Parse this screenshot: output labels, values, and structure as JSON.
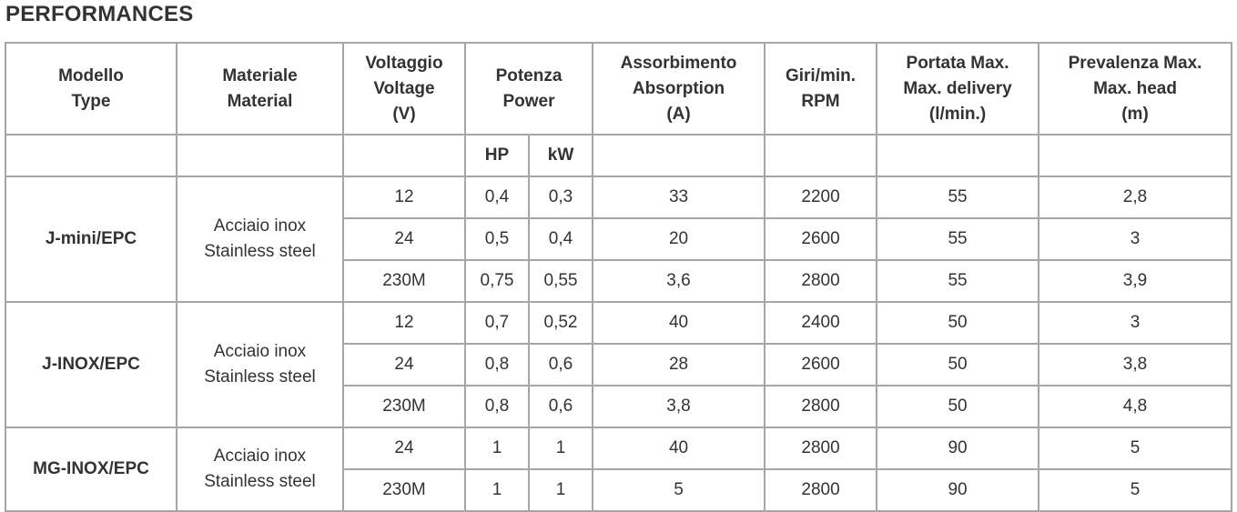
{
  "title": "PERFORMANCES",
  "headers": {
    "model": [
      "Modello",
      "Type"
    ],
    "material": [
      "Materiale",
      "Material"
    ],
    "voltage": [
      "Voltaggio",
      "Voltage",
      "(V)"
    ],
    "power": [
      "Potenza",
      "Power"
    ],
    "absorption": [
      "Assorbimento",
      "Absorption",
      "(A)"
    ],
    "rpm": [
      "Giri/min.",
      "RPM"
    ],
    "delivery": [
      "Portata Max.",
      "Max. delivery",
      "(l/min.)"
    ],
    "head": [
      "Prevalenza Max.",
      "Max. head",
      "(m)"
    ]
  },
  "power_units": {
    "hp": "HP",
    "kw": "kW"
  },
  "groups": [
    {
      "model": "J-mini/EPC",
      "material": [
        "Acciaio inox",
        "Stainless steel"
      ],
      "rows": [
        {
          "voltage": "12",
          "hp": "0,4",
          "kw": "0,3",
          "absorption": "33",
          "rpm": "2200",
          "delivery": "55",
          "head": "2,8"
        },
        {
          "voltage": "24",
          "hp": "0,5",
          "kw": "0,4",
          "absorption": "20",
          "rpm": "2600",
          "delivery": "55",
          "head": "3"
        },
        {
          "voltage": "230M",
          "hp": "0,75",
          "kw": "0,55",
          "absorption": "3,6",
          "rpm": "2800",
          "delivery": "55",
          "head": "3,9"
        }
      ]
    },
    {
      "model": "J-INOX/EPC",
      "material": [
        "Acciaio inox",
        "Stainless steel"
      ],
      "rows": [
        {
          "voltage": "12",
          "hp": "0,7",
          "kw": "0,52",
          "absorption": "40",
          "rpm": "2400",
          "delivery": "50",
          "head": "3"
        },
        {
          "voltage": "24",
          "hp": "0,8",
          "kw": "0,6",
          "absorption": "28",
          "rpm": "2600",
          "delivery": "50",
          "head": "3,8"
        },
        {
          "voltage": "230M",
          "hp": "0,8",
          "kw": "0,6",
          "absorption": "3,8",
          "rpm": "2800",
          "delivery": "50",
          "head": "4,8"
        }
      ]
    },
    {
      "model": "MG-INOX/EPC",
      "material": [
        "Acciaio inox",
        "Stainless steel"
      ],
      "rows": [
        {
          "voltage": "24",
          "hp": "1",
          "kw": "1",
          "absorption": "40",
          "rpm": "2800",
          "delivery": "90",
          "head": "5"
        },
        {
          "voltage": "230M",
          "hp": "1",
          "kw": "1",
          "absorption": "5",
          "rpm": "2800",
          "delivery": "90",
          "head": "5"
        }
      ]
    }
  ]
}
